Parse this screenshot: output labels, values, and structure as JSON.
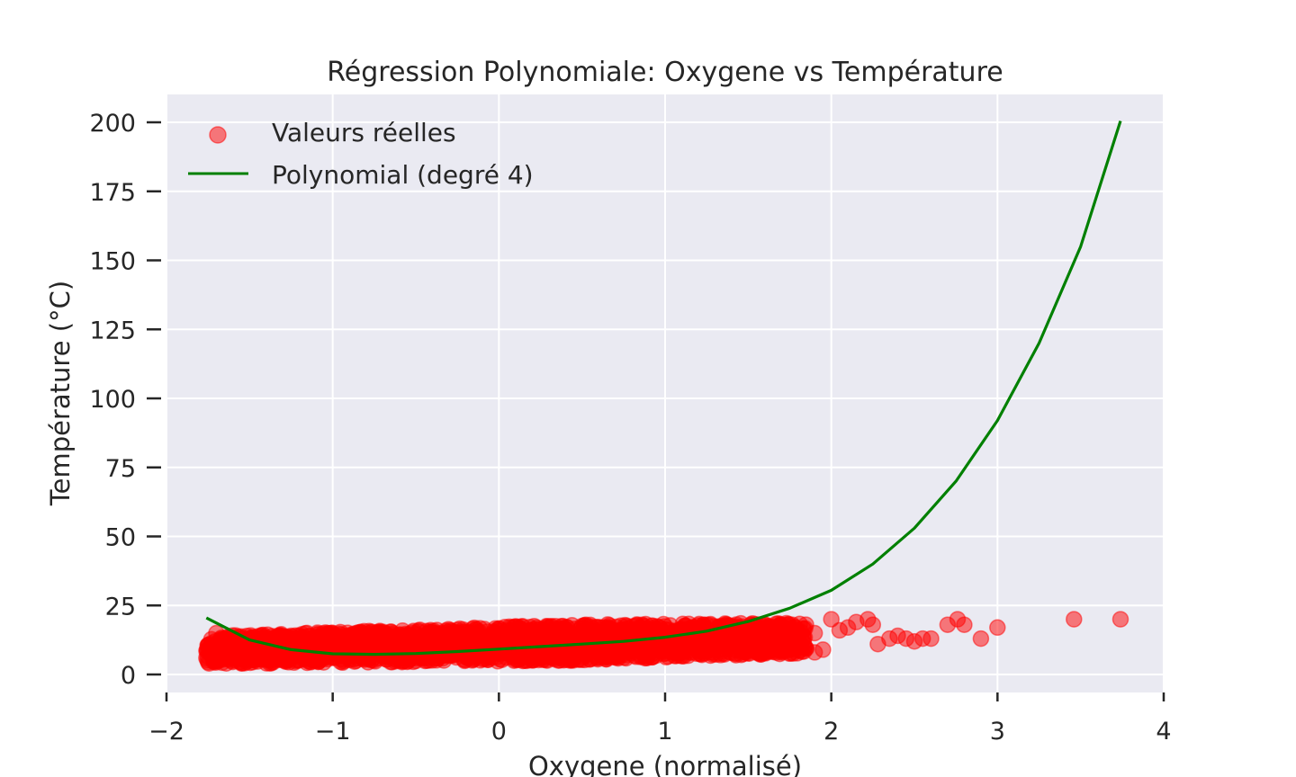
{
  "chart_data": {
    "type": "scatter",
    "title": "Régression Polynomiale: Oxygene vs Température",
    "xlabel": "Oxygene (normalisé)",
    "ylabel": "Température (°C)",
    "xlim": [
      -2,
      4
    ],
    "ylim": [
      -5,
      210
    ],
    "xticks": [
      -2,
      -1,
      0,
      1,
      2,
      3,
      4
    ],
    "xtick_labels": [
      "−2",
      "−1",
      "0",
      "1",
      "2",
      "3",
      "4"
    ],
    "yticks": [
      0,
      25,
      50,
      75,
      100,
      125,
      150,
      175,
      200
    ],
    "ytick_labels": [
      "0",
      "25",
      "50",
      "75",
      "100",
      "125",
      "150",
      "175",
      "200"
    ],
    "grid": true,
    "legend_position": "top-left",
    "series": [
      {
        "name": "Valeurs réelles",
        "kind": "scatter",
        "color": "#ff0000",
        "alpha": 0.5,
        "cluster": {
          "x_range": [
            -1.76,
            1.85
          ],
          "y_range": [
            4,
            23
          ]
        },
        "points": [
          {
            "x": 1.9,
            "y": 15
          },
          {
            "x": 2.0,
            "y": 20
          },
          {
            "x": 2.05,
            "y": 16
          },
          {
            "x": 2.1,
            "y": 17
          },
          {
            "x": 2.15,
            "y": 19
          },
          {
            "x": 2.22,
            "y": 20
          },
          {
            "x": 2.25,
            "y": 18
          },
          {
            "x": 2.28,
            "y": 11
          },
          {
            "x": 2.35,
            "y": 13
          },
          {
            "x": 2.4,
            "y": 14
          },
          {
            "x": 2.45,
            "y": 13
          },
          {
            "x": 2.5,
            "y": 12
          },
          {
            "x": 2.55,
            "y": 13
          },
          {
            "x": 2.6,
            "y": 13
          },
          {
            "x": 2.7,
            "y": 18
          },
          {
            "x": 2.76,
            "y": 20
          },
          {
            "x": 2.8,
            "y": 18
          },
          {
            "x": 2.9,
            "y": 13
          },
          {
            "x": 3.0,
            "y": 17
          },
          {
            "x": 3.46,
            "y": 20
          },
          {
            "x": 3.74,
            "y": 20
          },
          {
            "x": 1.95,
            "y": 9
          },
          {
            "x": 1.9,
            "y": 8
          },
          {
            "x": -1.76,
            "y": 6
          },
          {
            "x": -1.7,
            "y": 15
          },
          {
            "x": 1.7,
            "y": 8
          }
        ]
      },
      {
        "name": "Polynomial (degré 4)",
        "kind": "line",
        "color": "#008000",
        "x": [
          -1.76,
          -1.5,
          -1.25,
          -1.0,
          -0.75,
          -0.5,
          -0.25,
          0.0,
          0.25,
          0.5,
          0.75,
          1.0,
          1.25,
          1.5,
          1.75,
          2.0,
          2.25,
          2.5,
          2.75,
          3.0,
          3.25,
          3.5,
          3.74
        ],
        "y": [
          20.5,
          12.5,
          9.0,
          7.5,
          7.3,
          7.6,
          8.3,
          9.2,
          10.1,
          11.0,
          12.0,
          13.5,
          15.7,
          19.2,
          24.0,
          30.5,
          40.0,
          53.0,
          70.0,
          92.0,
          120.0,
          155.0,
          200.5
        ]
      }
    ]
  }
}
